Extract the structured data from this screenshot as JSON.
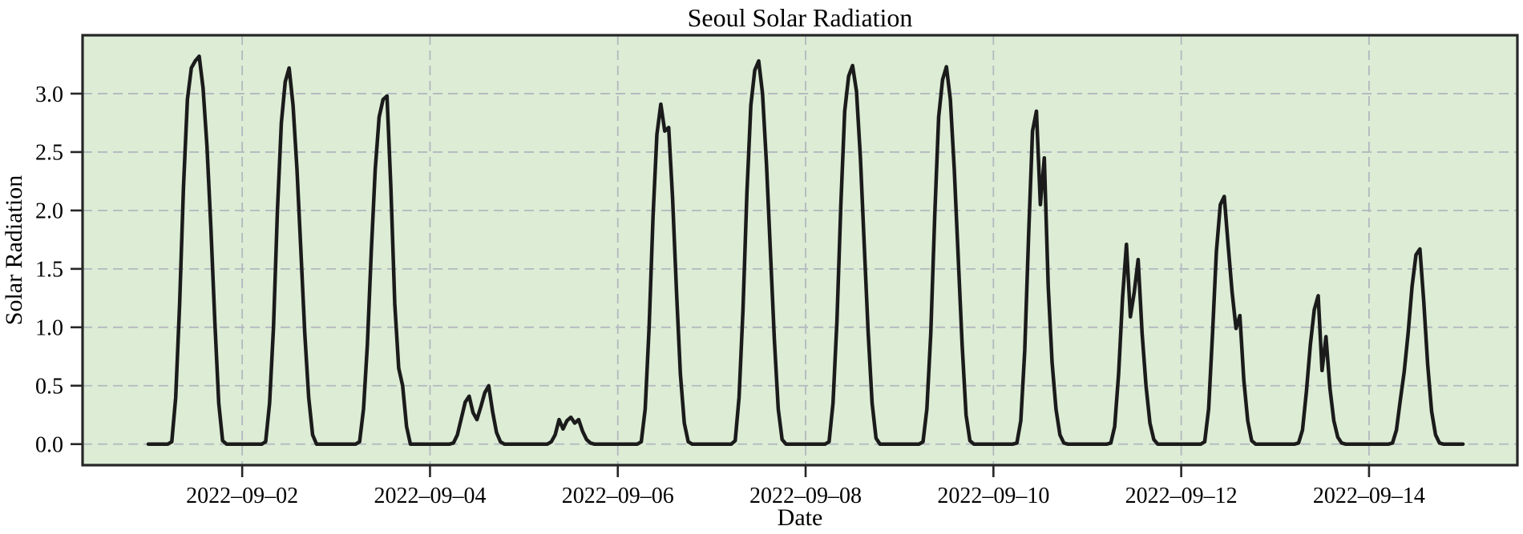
{
  "window": {
    "kind": "static-plot-image"
  },
  "chart_data": {
    "type": "line",
    "title": "Seoul Solar Radiation",
    "xlabel": "Date",
    "ylabel": "Solar Radiation",
    "grid": true,
    "legend": false,
    "plot_background_color": "#dcecd5",
    "figure_background_color": "#ffffff",
    "line_color": "#1b1b1b",
    "grid_color": "#b3b8bf",
    "spine_color": "#262626",
    "text_color": "#000000",
    "ylim": [
      -0.18,
      3.5
    ],
    "xlim_days": [
      -0.7,
      14.58
    ],
    "y_ticks": [
      0,
      0.5,
      1,
      1.5,
      2,
      2.5,
      3
    ],
    "y_tick_labels": [
      "0.0",
      "0.5",
      "1.0",
      "1.5",
      "2.0",
      "2.5",
      "3.0"
    ],
    "x_ticks_days": [
      1,
      3,
      5,
      7,
      9,
      11,
      13
    ],
    "x_tick_labels": [
      "2022–09–02",
      "2022–09–04",
      "2022–09–06",
      "2022–09–08",
      "2022–09–10",
      "2022–09–12",
      "2022–09–14"
    ],
    "series": [
      {
        "name": "Solar Radiation",
        "start": "2022-09-01 00:00",
        "interval_hours": 1,
        "days": [
          {
            "date": "2022-09-01",
            "hourly": [
              0,
              0,
              0,
              0,
              0,
              0,
              0.02,
              0.4,
              1.2,
              2.2,
              2.95,
              3.22,
              3.28,
              3.32,
              3.05,
              2.55,
              1.85,
              1.05,
              0.35,
              0.03,
              0,
              0,
              0,
              0
            ]
          },
          {
            "date": "2022-09-02",
            "hourly": [
              0,
              0,
              0,
              0,
              0,
              0,
              0.02,
              0.35,
              1.0,
              2.0,
              2.75,
              3.1,
              3.22,
              2.9,
              2.35,
              1.65,
              0.95,
              0.4,
              0.08,
              0,
              0,
              0,
              0,
              0
            ]
          },
          {
            "date": "2022-09-03",
            "hourly": [
              0,
              0,
              0,
              0,
              0,
              0,
              0.02,
              0.3,
              0.85,
              1.65,
              2.35,
              2.8,
              2.95,
              2.98,
              2.2,
              1.2,
              0.65,
              0.5,
              0.15,
              0,
              0,
              0,
              0,
              0
            ]
          },
          {
            "date": "2022-09-04",
            "hourly": [
              0,
              0,
              0,
              0,
              0,
              0,
              0.01,
              0.08,
              0.22,
              0.36,
              0.41,
              0.27,
              0.21,
              0.32,
              0.44,
              0.5,
              0.28,
              0.1,
              0.02,
              0,
              0,
              0,
              0,
              0
            ]
          },
          {
            "date": "2022-09-05",
            "hourly": [
              0,
              0,
              0,
              0,
              0,
              0,
              0,
              0.02,
              0.08,
              0.21,
              0.13,
              0.2,
              0.23,
              0.18,
              0.21,
              0.11,
              0.04,
              0.01,
              0,
              0,
              0,
              0,
              0,
              0
            ]
          },
          {
            "date": "2022-09-06",
            "hourly": [
              0,
              0,
              0,
              0,
              0,
              0,
              0.02,
              0.3,
              1.0,
              1.95,
              2.65,
              2.91,
              2.68,
              2.71,
              2.1,
              1.3,
              0.6,
              0.18,
              0.02,
              0,
              0,
              0,
              0,
              0
            ]
          },
          {
            "date": "2022-09-07",
            "hourly": [
              0,
              0,
              0,
              0,
              0,
              0,
              0.03,
              0.4,
              1.15,
              2.15,
              2.9,
              3.2,
              3.28,
              3.0,
              2.4,
              1.65,
              0.9,
              0.3,
              0.04,
              0,
              0,
              0,
              0,
              0
            ]
          },
          {
            "date": "2022-09-08",
            "hourly": [
              0,
              0,
              0,
              0,
              0,
              0,
              0.02,
              0.35,
              1.05,
              2.05,
              2.85,
              3.15,
              3.24,
              3.02,
              2.45,
              1.7,
              0.95,
              0.35,
              0.05,
              0,
              0,
              0,
              0,
              0
            ]
          },
          {
            "date": "2022-09-09",
            "hourly": [
              0,
              0,
              0,
              0,
              0,
              0,
              0.02,
              0.3,
              0.95,
              1.95,
              2.8,
              3.12,
              3.23,
              2.95,
              2.35,
              1.6,
              0.85,
              0.25,
              0.03,
              0,
              0,
              0,
              0,
              0
            ]
          },
          {
            "date": "2022-09-10",
            "hourly": [
              0,
              0,
              0,
              0,
              0,
              0,
              0.01,
              0.2,
              0.8,
              1.8,
              2.68,
              2.85,
              2.05,
              2.45,
              1.35,
              0.7,
              0.3,
              0.08,
              0.01,
              0,
              0,
              0,
              0,
              0
            ]
          },
          {
            "date": "2022-09-11",
            "hourly": [
              0,
              0,
              0,
              0,
              0,
              0,
              0.01,
              0.15,
              0.6,
              1.25,
              1.71,
              1.09,
              1.3,
              1.58,
              0.95,
              0.5,
              0.18,
              0.04,
              0,
              0,
              0,
              0,
              0,
              0
            ]
          },
          {
            "date": "2022-09-12",
            "hourly": [
              0,
              0,
              0,
              0,
              0,
              0,
              0.02,
              0.3,
              0.95,
              1.65,
              2.05,
              2.12,
              1.7,
              1.3,
              0.99,
              1.1,
              0.55,
              0.2,
              0.03,
              0,
              0,
              0,
              0,
              0
            ]
          },
          {
            "date": "2022-09-13",
            "hourly": [
              0,
              0,
              0,
              0,
              0,
              0,
              0.01,
              0.12,
              0.45,
              0.85,
              1.15,
              1.27,
              0.63,
              0.92,
              0.48,
              0.2,
              0.06,
              0.01,
              0,
              0,
              0,
              0,
              0,
              0
            ]
          },
          {
            "date": "2022-09-14",
            "hourly": [
              0,
              0,
              0,
              0,
              0,
              0,
              0.01,
              0.12,
              0.38,
              0.62,
              0.95,
              1.35,
              1.62,
              1.67,
              1.22,
              0.68,
              0.28,
              0.08,
              0.01,
              0,
              0,
              0,
              0,
              0
            ]
          }
        ],
        "end_point": {
          "date": "2022-09-15 00:00",
          "t_days": 14,
          "value": 0
        }
      }
    ]
  }
}
